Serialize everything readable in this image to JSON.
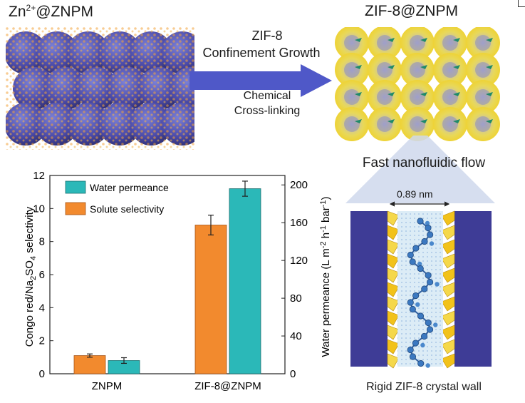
{
  "left_panel": {
    "title_base": "Zn",
    "title_sup": "2+",
    "title_rest": "@ZNPM"
  },
  "right_panel": {
    "title": "ZIF-8@ZNPM"
  },
  "arrow": {
    "top_line1": "ZIF-8",
    "top_line2": "Confinement Growth",
    "bottom_line1": "Chemical",
    "bottom_line2": "Cross-linking"
  },
  "nanochannel": {
    "flow_label": "Fast nanofluidic flow",
    "width_label": "0.89 nm",
    "caption": "Rigid ZIF-8 crystal wall"
  },
  "colors": {
    "arrow": "#4f58c8",
    "orange": "#f28a2e",
    "teal": "#2bb8b8",
    "navy": "#3e3c96",
    "yellow": "#f2d020"
  },
  "chart_data": {
    "type": "bar",
    "categories": [
      "ZNPM",
      "ZIF-8@ZNPM"
    ],
    "series": [
      {
        "name": "Solute selectivity",
        "axis": "left",
        "color": "#f28a2e",
        "values": [
          1.1,
          9.0
        ],
        "errors": [
          0.1,
          0.6
        ]
      },
      {
        "name": "Water permeance",
        "axis": "right",
        "color": "#2bb8b8",
        "values": [
          14,
          196
        ],
        "errors": [
          3,
          8
        ]
      }
    ],
    "ylabel_left": "Congo red/Na2SO4 selectivity",
    "ylabel_right": "Water permeance (L m-2 h-1 bar-1)",
    "ylim_left": [
      0,
      12
    ],
    "ylim_right": [
      0,
      210
    ],
    "yticks_left": [
      "0",
      "2",
      "4",
      "6",
      "8",
      "10",
      "12"
    ],
    "yticks_right": [
      "0",
      "40",
      "80",
      "120",
      "160",
      "200"
    ],
    "legend": [
      "Water permeance",
      "Solute selectivity"
    ],
    "legend_position": "top-left"
  }
}
